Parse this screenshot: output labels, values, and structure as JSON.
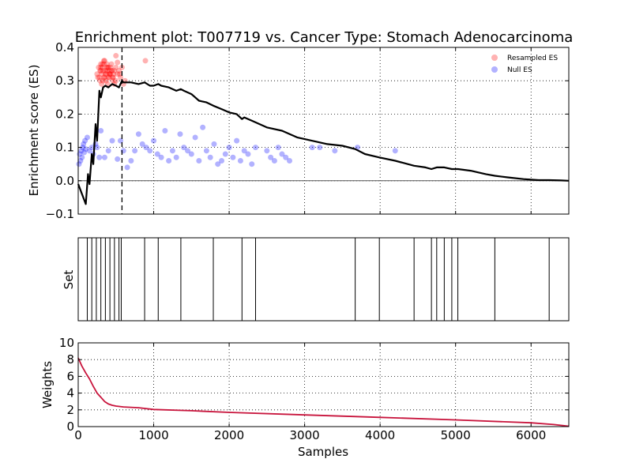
{
  "chart_data": [
    {
      "type": "line",
      "title": "Enrichment plot: T007719 vs. Cancer Type: Stomach Adenocarcinoma",
      "xlabel": "",
      "ylabel": "Enrichment score (ES)",
      "xlim": [
        0,
        6500
      ],
      "ylim": [
        -0.1,
        0.4
      ],
      "xticks": [
        0,
        1000,
        2000,
        3000,
        4000,
        5000,
        6000
      ],
      "yticks": [
        -0.1,
        0.0,
        0.1,
        0.2,
        0.3,
        0.4
      ],
      "ytick_labels": [
        "−0.1",
        "0.0",
        "0.1",
        "0.2",
        "0.3",
        "0.4"
      ],
      "grid": true,
      "legend": "top-right",
      "vline_x": 580,
      "hline_y": 0.0,
      "colors": {
        "es_line": "#000000",
        "resampled": "#ff0000",
        "null": "#0000ff"
      },
      "series": [
        {
          "kind": "line",
          "x": [
            0,
            50,
            100,
            130,
            150,
            180,
            200,
            230,
            250,
            280,
            300,
            330,
            360,
            400,
            450,
            500,
            540,
            560,
            580,
            600,
            700,
            800,
            880,
            950,
            1000,
            1060,
            1100,
            1200,
            1300,
            1360,
            1400,
            1500,
            1600,
            1700,
            1790,
            1900,
            2000,
            2100,
            2170,
            2200,
            2300,
            2350,
            2500,
            2700,
            2900,
            3100,
            3300,
            3500,
            3670,
            3800,
            3990,
            4200,
            4450,
            4600,
            4680,
            4750,
            4850,
            4950,
            5030,
            5200,
            5400,
            5520,
            5700,
            5900,
            6100,
            6240,
            6400,
            6500
          ],
          "y": [
            -0.01,
            -0.04,
            -0.07,
            0.02,
            -0.01,
            0.08,
            0.05,
            0.17,
            0.12,
            0.27,
            0.25,
            0.28,
            0.285,
            0.28,
            0.29,
            0.285,
            0.28,
            0.29,
            0.3,
            0.295,
            0.295,
            0.29,
            0.295,
            0.285,
            0.285,
            0.29,
            0.285,
            0.28,
            0.27,
            0.275,
            0.27,
            0.26,
            0.24,
            0.235,
            0.225,
            0.215,
            0.205,
            0.2,
            0.185,
            0.19,
            0.18,
            0.175,
            0.16,
            0.15,
            0.13,
            0.12,
            0.11,
            0.105,
            0.095,
            0.08,
            0.07,
            0.06,
            0.045,
            0.04,
            0.035,
            0.04,
            0.04,
            0.035,
            0.035,
            0.03,
            0.02,
            0.015,
            0.01,
            0.005,
            0.002,
            0.002,
            0.001,
            0.0
          ]
        },
        {
          "kind": "scatter",
          "name": "Resampled ES",
          "x": [
            250,
            270,
            280,
            290,
            300,
            310,
            320,
            330,
            340,
            350,
            360,
            370,
            380,
            390,
            400,
            410,
            420,
            430,
            440,
            450,
            460,
            470,
            480,
            500,
            520,
            540,
            560,
            290,
            310,
            330,
            350,
            370,
            390,
            410,
            300,
            340,
            380,
            420,
            460,
            500,
            320,
            360,
            400,
            440,
            480,
            260,
            300,
            340,
            380,
            420,
            460,
            520,
            580,
            600,
            890,
            620,
            550,
            500
          ],
          "y": [
            0.32,
            0.34,
            0.31,
            0.33,
            0.35,
            0.32,
            0.34,
            0.33,
            0.31,
            0.36,
            0.33,
            0.32,
            0.35,
            0.34,
            0.31,
            0.33,
            0.32,
            0.34,
            0.35,
            0.33,
            0.31,
            0.32,
            0.33,
            0.34,
            0.32,
            0.33,
            0.31,
            0.3,
            0.29,
            0.3,
            0.31,
            0.3,
            0.29,
            0.31,
            0.34,
            0.36,
            0.33,
            0.32,
            0.31,
            0.3,
            0.35,
            0.32,
            0.34,
            0.33,
            0.29,
            0.31,
            0.33,
            0.35,
            0.34,
            0.32,
            0.3,
            0.355,
            0.34,
            0.29,
            0.36,
            0.3,
            0.32,
            0.375
          ]
        },
        {
          "kind": "scatter",
          "name": "Null ES",
          "x": [
            20,
            40,
            60,
            80,
            100,
            30,
            50,
            70,
            90,
            10,
            120,
            150,
            180,
            200,
            230,
            250,
            280,
            300,
            350,
            400,
            450,
            520,
            560,
            600,
            650,
            700,
            750,
            800,
            850,
            900,
            950,
            1000,
            1050,
            1100,
            1150,
            1200,
            1250,
            1300,
            1350,
            1400,
            1450,
            1500,
            1550,
            1600,
            1650,
            1700,
            1750,
            1800,
            1850,
            1900,
            1950,
            2000,
            2050,
            2100,
            2150,
            2200,
            2250,
            2300,
            2350,
            2500,
            2550,
            2600,
            2650,
            2700,
            2750,
            2800,
            3100,
            3200,
            3400,
            3700,
            4200
          ],
          "y": [
            0.08,
            0.09,
            0.1,
            0.085,
            0.095,
            0.06,
            0.07,
            0.11,
            0.12,
            0.05,
            0.13,
            0.09,
            0.1,
            0.08,
            0.11,
            0.1,
            0.07,
            0.15,
            0.07,
            0.09,
            0.12,
            0.065,
            0.12,
            0.09,
            0.04,
            0.06,
            0.09,
            0.14,
            0.11,
            0.1,
            0.09,
            0.12,
            0.08,
            0.07,
            0.15,
            0.06,
            0.09,
            0.07,
            0.14,
            0.1,
            0.09,
            0.08,
            0.13,
            0.06,
            0.16,
            0.09,
            0.07,
            0.11,
            0.05,
            0.06,
            0.08,
            0.1,
            0.07,
            0.12,
            0.06,
            0.09,
            0.08,
            0.05,
            0.1,
            0.09,
            0.07,
            0.06,
            0.1,
            0.08,
            0.07,
            0.06,
            0.1,
            0.1,
            0.09,
            0.1,
            0.09
          ]
        }
      ]
    },
    {
      "type": "rug",
      "ylabel": "Set",
      "xlim": [
        0,
        6500
      ],
      "x": [
        120,
        180,
        240,
        300,
        360,
        420,
        480,
        540,
        570,
        880,
        1060,
        1360,
        1790,
        2170,
        2350,
        3670,
        3990,
        4450,
        4680,
        4750,
        4850,
        4950,
        5030,
        5520,
        6240
      ]
    },
    {
      "type": "line",
      "xlabel": "Samples",
      "ylabel": "Weights",
      "xlim": [
        0,
        6500
      ],
      "ylim": [
        0,
        10
      ],
      "xticks": [
        0,
        1000,
        2000,
        3000,
        4000,
        5000,
        6000
      ],
      "yticks": [
        0,
        2,
        4,
        6,
        8,
        10
      ],
      "grid": true,
      "colors": {
        "weights": "#c8143c"
      },
      "series": [
        {
          "x": [
            0,
            50,
            100,
            150,
            200,
            250,
            300,
            350,
            400,
            450,
            500,
            600,
            700,
            800,
            1000,
            1500,
            2000,
            3000,
            4000,
            5000,
            6000,
            6300,
            6500
          ],
          "y": [
            8.2,
            7.2,
            6.4,
            5.7,
            4.8,
            4.0,
            3.5,
            3.0,
            2.7,
            2.55,
            2.45,
            2.35,
            2.3,
            2.25,
            2.05,
            1.9,
            1.7,
            1.4,
            1.1,
            0.8,
            0.45,
            0.25,
            0.05
          ]
        }
      ]
    }
  ]
}
